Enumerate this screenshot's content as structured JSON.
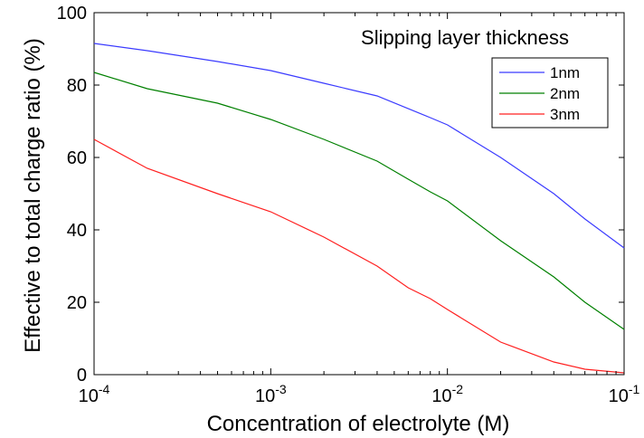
{
  "chart_data": {
    "type": "line",
    "title": "",
    "annotation": "Slipping layer thickness",
    "xlabel": "Concentration of electrolyte (M)",
    "ylabel": "Effective to total charge ratio (%)",
    "xscale": "log",
    "xlim": [
      0.0001,
      0.1
    ],
    "ylim": [
      0,
      100
    ],
    "x_ticks": [
      {
        "value": 0.0001,
        "base": "10",
        "exp": "-4"
      },
      {
        "value": 0.001,
        "base": "10",
        "exp": "-3"
      },
      {
        "value": 0.01,
        "base": "10",
        "exp": "-2"
      },
      {
        "value": 0.1,
        "base": "10",
        "exp": "-1"
      }
    ],
    "y_ticks": [
      "0",
      "20",
      "40",
      "60",
      "80",
      "100"
    ],
    "grid": false,
    "legend_position": "top-right",
    "series": [
      {
        "name": "1nm",
        "color": "#3b3bff",
        "x": [
          0.0001,
          0.0002,
          0.0005,
          0.001,
          0.002,
          0.004,
          0.008,
          0.01,
          0.02,
          0.04,
          0.06,
          0.1
        ],
        "y": [
          91.5,
          89.5,
          86.5,
          84,
          80.5,
          77,
          71,
          69,
          60,
          50,
          43,
          35
        ]
      },
      {
        "name": "2nm",
        "color": "#008000",
        "x": [
          0.0001,
          0.0002,
          0.0005,
          0.001,
          0.002,
          0.004,
          0.006,
          0.008,
          0.01,
          0.02,
          0.04,
          0.06,
          0.1
        ],
        "y": [
          83.5,
          79,
          75,
          70.5,
          65,
          59,
          54,
          50.5,
          48,
          37,
          27,
          20,
          12.5
        ]
      },
      {
        "name": "3nm",
        "color": "#ff2020",
        "x": [
          0.0001,
          0.0002,
          0.0005,
          0.001,
          0.002,
          0.004,
          0.006,
          0.008,
          0.01,
          0.02,
          0.04,
          0.06,
          0.1
        ],
        "y": [
          65,
          57,
          50,
          45,
          38,
          30,
          24,
          21,
          18,
          9,
          3.5,
          1.5,
          0.5
        ]
      }
    ]
  }
}
